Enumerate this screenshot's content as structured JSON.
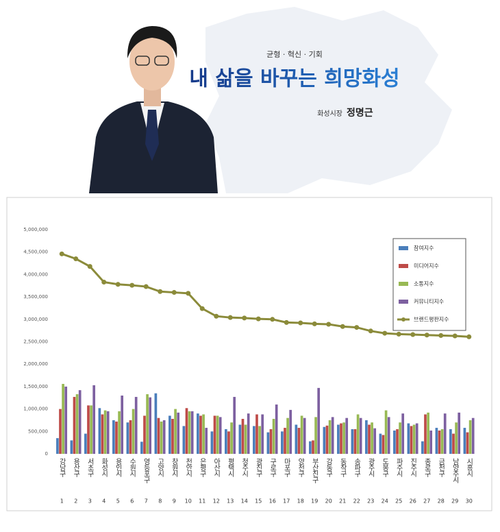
{
  "banner": {
    "slogan": "균형 · 혁신 · 기회",
    "headline": "내 삶을 바꾸는 희망화성",
    "role": "화성시장",
    "name": "정명근"
  },
  "chart_data": {
    "type": "bar",
    "categories": [
      "강남구",
      "용산구",
      "서초구",
      "화성시",
      "용인시",
      "수원시",
      "영등포구",
      "고양시",
      "창원시",
      "천안시",
      "은평구",
      "아산시",
      "평택시",
      "청주시",
      "광진구",
      "구로구",
      "마포구",
      "양천구",
      "부산진구",
      "강동구",
      "동작구",
      "송파구",
      "광주시",
      "도봉구",
      "파주시",
      "진주시",
      "종로구",
      "금천구",
      "남양주시",
      "시흥시"
    ],
    "category_numbers": [
      1,
      2,
      3,
      4,
      5,
      6,
      7,
      8,
      9,
      10,
      11,
      12,
      13,
      14,
      15,
      16,
      17,
      18,
      19,
      20,
      21,
      22,
      23,
      24,
      25,
      26,
      27,
      28,
      29,
      30
    ],
    "series": [
      {
        "name": "참여지수",
        "type": "bar",
        "color": "#4a7ebb",
        "values": [
          350000,
          300000,
          450000,
          1020000,
          750000,
          700000,
          270000,
          1350000,
          850000,
          620000,
          900000,
          500000,
          550000,
          650000,
          620000,
          480000,
          500000,
          650000,
          280000,
          600000,
          650000,
          550000,
          750000,
          450000,
          520000,
          680000,
          280000,
          580000,
          550000,
          580000
        ]
      },
      {
        "name": "미디어지수",
        "type": "bar",
        "color": "#be4b48",
        "values": [
          1000000,
          1270000,
          1080000,
          880000,
          720000,
          750000,
          850000,
          800000,
          780000,
          1020000,
          850000,
          850000,
          500000,
          780000,
          880000,
          550000,
          580000,
          580000,
          300000,
          630000,
          680000,
          550000,
          650000,
          420000,
          550000,
          620000,
          880000,
          520000,
          450000,
          480000
        ]
      },
      {
        "name": "소통지수",
        "type": "bar",
        "color": "#98b954",
        "values": [
          1560000,
          1330000,
          1080000,
          970000,
          950000,
          1000000,
          1330000,
          720000,
          1000000,
          950000,
          880000,
          850000,
          700000,
          650000,
          620000,
          780000,
          800000,
          850000,
          820000,
          750000,
          700000,
          880000,
          700000,
          970000,
          700000,
          650000,
          920000,
          550000,
          700000,
          750000
        ]
      },
      {
        "name": "커뮤니티지수",
        "type": "bar",
        "color": "#7d60a0",
        "values": [
          1500000,
          1420000,
          1530000,
          950000,
          1300000,
          1270000,
          1260000,
          750000,
          920000,
          950000,
          580000,
          820000,
          1270000,
          900000,
          880000,
          1100000,
          980000,
          800000,
          1470000,
          820000,
          800000,
          800000,
          570000,
          820000,
          900000,
          680000,
          520000,
          900000,
          920000,
          800000
        ]
      },
      {
        "name": "브랜드평판지수",
        "type": "line",
        "color": "#8b8b3a",
        "values": [
          4460000,
          4350000,
          4180000,
          3830000,
          3780000,
          3760000,
          3730000,
          3620000,
          3600000,
          3580000,
          3240000,
          3070000,
          3040000,
          3030000,
          3010000,
          3000000,
          2930000,
          2920000,
          2900000,
          2890000,
          2840000,
          2820000,
          2740000,
          2690000,
          2670000,
          2660000,
          2650000,
          2640000,
          2630000,
          2610000
        ]
      }
    ],
    "ylim": [
      0,
      5000000
    ],
    "yticks": [
      0,
      {
        "value": 500000,
        "label": "500,000"
      },
      {
        "value": 1000000,
        "label": "1,000,000"
      },
      {
        "value": 1500000,
        "label": "1,500,000"
      },
      {
        "value": 2000000,
        "label": "2,000,000"
      },
      {
        "value": 2500000,
        "label": "2,500,000"
      },
      {
        "value": 3000000,
        "label": "3,000,000"
      },
      {
        "value": 3500000,
        "label": "3,500,000"
      },
      {
        "value": 4000000,
        "label": "4,000,000"
      },
      {
        "value": 4500000,
        "label": "4,500,000"
      },
      {
        "value": 5000000,
        "label": "5,000,000"
      }
    ],
    "grid": false,
    "legend": "upper right"
  }
}
